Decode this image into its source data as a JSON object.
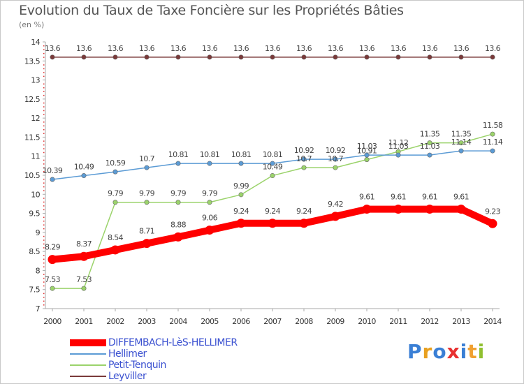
{
  "chart_data": {
    "type": "line",
    "title": "Evolution du Taux de Taxe Foncière sur les Propriétés Bâties",
    "subtitle": "(en %)",
    "x": [
      2000,
      2001,
      2002,
      2003,
      2004,
      2005,
      2006,
      2007,
      2008,
      2009,
      2010,
      2011,
      2012,
      2013,
      2014
    ],
    "x_labels": [
      "2000",
      "2001",
      "2002",
      "2003",
      "2004",
      "2005",
      "2006",
      "2007",
      "2008",
      "2009",
      "2010",
      "2011",
      "2012",
      "2013",
      "2014"
    ],
    "ylim": [
      7,
      14
    ],
    "y_ticks": [
      7,
      7.5,
      8,
      8.5,
      9,
      9.5,
      10,
      10.5,
      11,
      11.5,
      12,
      12.5,
      13,
      13.5,
      14
    ],
    "y_tick_labels": [
      "7",
      "7.5",
      "8",
      "8.5",
      "9",
      "9.5",
      "10",
      "10.5",
      "11",
      "11.5",
      "12",
      "12.5",
      "13",
      "13.5",
      "14"
    ],
    "grid": false,
    "legend_position": "bottom-left",
    "series": [
      {
        "name": "DIFFEMBACH-LèS-HELLIMER",
        "color": "#ff0000",
        "values": [
          8.29,
          8.37,
          8.54,
          8.71,
          8.88,
          9.06,
          9.24,
          9.24,
          9.24,
          9.42,
          9.61,
          9.61,
          9.61,
          9.61,
          9.23
        ],
        "labels": [
          "8.29",
          "8.37",
          "8.54",
          "8.71",
          "8.88",
          "9.06",
          "9.24",
          "9.24",
          "9.24",
          "9.42",
          "9.61",
          "9.61",
          "9.61",
          "9.61",
          "9.23"
        ]
      },
      {
        "name": "Hellimer",
        "color": "#5b9bd5",
        "values": [
          10.39,
          10.49,
          10.59,
          10.7,
          10.81,
          10.81,
          10.81,
          10.81,
          10.92,
          10.92,
          11.03,
          11.03,
          11.03,
          11.14,
          11.14
        ],
        "labels": [
          "10.39",
          "10.49",
          "10.59",
          "10.7",
          "10.81",
          "10.81",
          "10.81",
          "10.81",
          "10.92",
          "10.92",
          "11.03",
          "11.03",
          "11.03",
          "11.14",
          "11.14"
        ]
      },
      {
        "name": "Petit-Tenquin",
        "color": "#9bd36b",
        "values": [
          7.53,
          7.53,
          9.79,
          9.79,
          9.79,
          9.79,
          9.99,
          10.49,
          10.7,
          10.7,
          10.91,
          11.12,
          11.35,
          11.35,
          11.58
        ],
        "labels": [
          "7.53",
          "7.53",
          "9.79",
          "9.79",
          "9.79",
          "9.79",
          "9.99",
          "10.49",
          "10.7",
          "10.7",
          "10.91",
          "11.12",
          "11.35",
          "11.35",
          "11.58"
        ]
      },
      {
        "name": "Leyviller",
        "color": "#7a3a3a",
        "values": [
          13.6,
          13.6,
          13.6,
          13.6,
          13.6,
          13.6,
          13.6,
          13.6,
          13.6,
          13.6,
          13.6,
          13.6,
          13.6,
          13.6,
          13.6
        ],
        "labels": [
          "13.6",
          "13.6",
          "13.6",
          "13.6",
          "13.6",
          "13.6",
          "13.6",
          "13.6",
          "13.6",
          "13.6",
          "13.6",
          "13.6",
          "13.6",
          "13.6",
          "13.6"
        ]
      }
    ]
  },
  "logo": {
    "letters": [
      "P",
      "r",
      "o",
      "x",
      "i",
      "t",
      "i"
    ],
    "colors": [
      "#3a7fd5",
      "#e8a020",
      "#3a7fd5",
      "#e83030",
      "#3a7fd5",
      "#f0a030",
      "#90c030"
    ]
  }
}
